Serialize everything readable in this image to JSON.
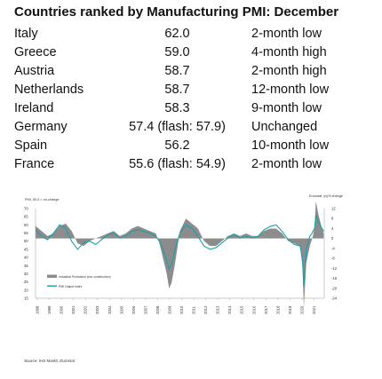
{
  "title": "Countries ranked by Manufacturing PMI: December",
  "rankings": [
    {
      "country": "Italy",
      "pmi": "62.0",
      "trend": "2-month low"
    },
    {
      "country": "Greece",
      "pmi": "59.0",
      "trend": "4-month high"
    },
    {
      "country": "Austria",
      "pmi": "58.7",
      "trend": "2-month high"
    },
    {
      "country": "Netherlands",
      "pmi": "58.7",
      "trend": "12-month low"
    },
    {
      "country": "Ireland",
      "pmi": "58.3",
      "trend": "9-month low"
    },
    {
      "country": "Germany",
      "pmi": "57.4 (flash: 57.9)",
      "trend": "Unchanged"
    },
    {
      "country": "Spain",
      "pmi": "56.2",
      "trend": "10-month low"
    },
    {
      "country": "France",
      "pmi": "55.6 (flash: 54.9)",
      "trend": "2-month low"
    }
  ],
  "source": "Source: IHS Markit, Eurostat",
  "chart_data": {
    "type": "line",
    "left_axis_title": "PMI, 50.0 = no-change",
    "right_axis_title": "Eurostat, y/y% change",
    "left_ylim": [
      15,
      70
    ],
    "left_ticks": [
      15,
      20,
      25,
      30,
      35,
      40,
      45,
      50,
      55,
      60,
      65,
      70
    ],
    "right_ylim": [
      -24,
      12
    ],
    "right_ticks": [
      12,
      8,
      4,
      0,
      -4,
      -8,
      -12,
      -16,
      -20,
      -24
    ],
    "x_ticks": [
      "1998",
      "1999",
      "2000",
      "2001",
      "2002",
      "2003",
      "2004",
      "2005",
      "2006",
      "2007",
      "2008",
      "2009",
      "2010",
      "2011",
      "2012",
      "2013",
      "2014",
      "2015",
      "2016",
      "2017",
      "2018",
      "2019",
      "2020",
      "2021"
    ],
    "grid": false,
    "legend_position": "left",
    "series": [
      {
        "name": "Industrial Production (exc construction)",
        "style": "area",
        "color": "#8c8c8c",
        "axis": "right",
        "x": [
          1998.0,
          1998.5,
          1999.0,
          1999.5,
          2000.0,
          2000.5,
          2001.0,
          2001.5,
          2002.0,
          2002.5,
          2003.0,
          2003.5,
          2004.0,
          2004.5,
          2005.0,
          2005.5,
          2006.0,
          2006.5,
          2007.0,
          2007.5,
          2008.0,
          2008.3,
          2008.6,
          2008.9,
          2009.1,
          2009.3,
          2009.6,
          2010.0,
          2010.5,
          2011.0,
          2011.5,
          2012.0,
          2012.5,
          2013.0,
          2013.5,
          2014.0,
          2014.5,
          2015.0,
          2015.5,
          2016.0,
          2016.5,
          2017.0,
          2017.5,
          2018.0,
          2018.5,
          2019.0,
          2019.5,
          2020.0,
          2020.2,
          2020.3,
          2020.5,
          2020.8,
          2021.0,
          2021.2,
          2021.3,
          2021.5,
          2021.8,
          2021.95
        ],
        "values": [
          5,
          3,
          1,
          2,
          5,
          6,
          3,
          -2,
          -3,
          -1,
          0,
          1,
          2,
          3,
          1,
          2,
          4,
          5,
          4,
          3,
          2,
          -2,
          -8,
          -14,
          -20,
          -18,
          -10,
          3,
          8,
          6,
          4,
          -1,
          -3,
          -3,
          -1,
          1,
          2,
          1,
          2,
          1,
          1,
          3,
          4,
          4,
          2,
          -1,
          -2,
          -3,
          -12,
          -28,
          -10,
          -3,
          0,
          4,
          15,
          10,
          4,
          2
        ]
      },
      {
        "name": "PMI Output Index",
        "style": "line",
        "color": "#1aa0a8",
        "axis": "left",
        "x": [
          1998.0,
          1998.5,
          1999.0,
          1999.5,
          2000.0,
          2000.5,
          2001.0,
          2001.5,
          2002.0,
          2002.5,
          2003.0,
          2003.5,
          2004.0,
          2004.5,
          2005.0,
          2005.5,
          2006.0,
          2006.5,
          2007.0,
          2007.5,
          2008.0,
          2008.3,
          2008.6,
          2008.9,
          2009.1,
          2009.3,
          2009.6,
          2010.0,
          2010.5,
          2011.0,
          2011.5,
          2012.0,
          2012.5,
          2013.0,
          2013.5,
          2014.0,
          2014.5,
          2015.0,
          2015.5,
          2016.0,
          2016.5,
          2017.0,
          2017.5,
          2018.0,
          2018.5,
          2019.0,
          2019.5,
          2020.0,
          2020.2,
          2020.3,
          2020.5,
          2020.8,
          2021.0,
          2021.2,
          2021.3,
          2021.5,
          2021.8,
          2021.95
        ],
        "values": [
          57,
          53,
          51,
          55,
          60,
          58,
          50,
          45,
          49,
          50,
          48,
          51,
          54,
          55,
          52,
          53,
          56,
          57,
          56,
          55,
          53,
          50,
          45,
          38,
          33,
          36,
          45,
          55,
          60,
          58,
          53,
          47,
          45,
          46,
          49,
          52,
          54,
          52,
          53,
          52,
          53,
          57,
          59,
          60,
          56,
          51,
          48,
          47,
          38,
          22,
          45,
          53,
          55,
          58,
          66,
          62,
          58,
          56
        ]
      }
    ]
  }
}
